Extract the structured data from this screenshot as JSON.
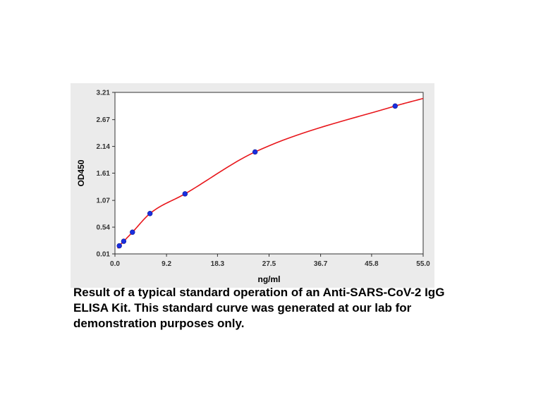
{
  "chart_data": {
    "type": "scatter",
    "xlabel": "ng/ml",
    "ylabel": "OD450",
    "xlim": [
      0.0,
      55.0
    ],
    "ylim": [
      0.01,
      3.21
    ],
    "x_ticks": [
      "0.0",
      "9.2",
      "18.3",
      "27.5",
      "36.7",
      "45.8",
      "55.0"
    ],
    "y_ticks": [
      "0.01",
      "0.54",
      "1.07",
      "1.61",
      "2.14",
      "2.67",
      "3.21"
    ],
    "grid": false,
    "points": [
      {
        "x": 0.78,
        "y": 0.17
      },
      {
        "x": 1.56,
        "y": 0.26
      },
      {
        "x": 3.12,
        "y": 0.44
      },
      {
        "x": 6.25,
        "y": 0.81
      },
      {
        "x": 12.5,
        "y": 1.2
      },
      {
        "x": 25.0,
        "y": 2.03
      },
      {
        "x": 50.0,
        "y": 2.94
      }
    ],
    "curve_end": {
      "x": 55.0,
      "y": 3.09
    },
    "point_color": "#1a2ee0",
    "curve_color": "#e8161b"
  },
  "caption": "Result of a typical standard operation of an Anti-SARS-CoV-2 IgG ELISA Kit. This standard curve was generated at our lab for demonstration purposes only."
}
